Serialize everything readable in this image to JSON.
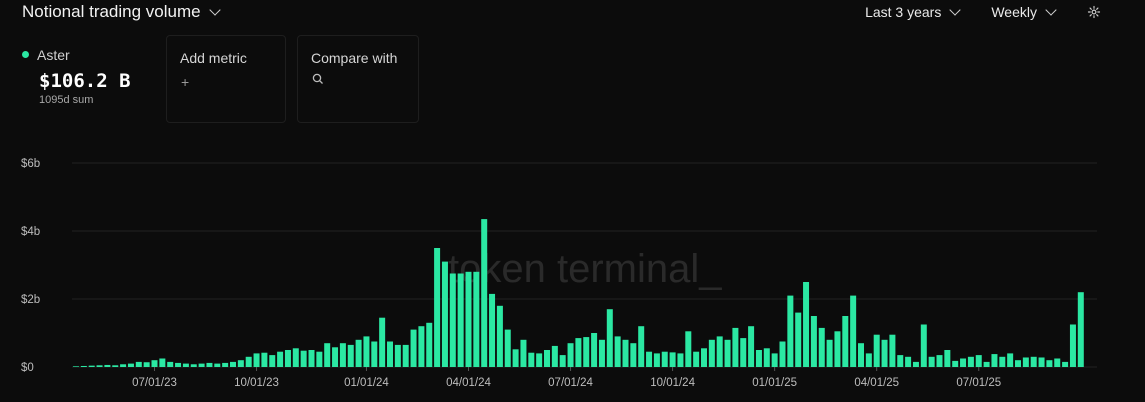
{
  "header": {
    "title": "Notional trading volume"
  },
  "controls": {
    "range": "Last 3 years",
    "interval": "Weekly"
  },
  "metric": {
    "name": "Aster",
    "value": "$106.2 B",
    "sub": "1095d sum",
    "color": "#2be8a3"
  },
  "cards": {
    "add_metric": "Add metric",
    "add_symbol": "+",
    "compare": "Compare with"
  },
  "watermark": "token terminal_",
  "chart_data": {
    "type": "bar",
    "color": "#2be8a3",
    "ylabel": "",
    "xlabel": "",
    "ylim": [
      0,
      6
    ],
    "y_ticks": [
      "$0",
      "$2b",
      "$4b",
      "$6b"
    ],
    "y_tick_values": [
      0,
      2,
      4,
      6
    ],
    "x_ticks": [
      "07/01/23",
      "10/01/23",
      "01/01/24",
      "04/01/24",
      "07/01/24",
      "10/01/24",
      "01/01/25",
      "04/01/25",
      "07/01/25"
    ],
    "x_tick_bar_index": [
      10,
      23,
      37,
      50,
      63,
      76,
      89,
      102,
      115
    ],
    "grid": true,
    "values": [
      0.02,
      0.03,
      0.04,
      0.05,
      0.06,
      0.05,
      0.08,
      0.1,
      0.15,
      0.14,
      0.2,
      0.25,
      0.15,
      0.12,
      0.1,
      0.08,
      0.1,
      0.12,
      0.1,
      0.12,
      0.15,
      0.2,
      0.3,
      0.4,
      0.42,
      0.35,
      0.45,
      0.5,
      0.55,
      0.48,
      0.5,
      0.45,
      0.7,
      0.58,
      0.7,
      0.65,
      0.8,
      0.9,
      0.75,
      1.45,
      0.75,
      0.65,
      0.65,
      1.1,
      1.2,
      1.3,
      3.5,
      3.1,
      2.75,
      2.75,
      2.8,
      2.8,
      4.35,
      2.15,
      1.8,
      1.1,
      0.52,
      0.8,
      0.42,
      0.4,
      0.5,
      0.62,
      0.35,
      0.7,
      0.85,
      0.88,
      1.0,
      0.8,
      1.7,
      0.9,
      0.8,
      0.7,
      1.2,
      0.45,
      0.4,
      0.45,
      0.43,
      0.4,
      1.05,
      0.45,
      0.55,
      0.8,
      0.9,
      0.8,
      1.15,
      0.85,
      1.2,
      0.5,
      0.55,
      0.4,
      0.75,
      2.1,
      1.6,
      2.5,
      1.5,
      1.15,
      0.8,
      1.05,
      1.5,
      2.1,
      0.7,
      0.4,
      0.95,
      0.8,
      0.95,
      0.35,
      0.3,
      0.15,
      1.25,
      0.3,
      0.35,
      0.5,
      0.18,
      0.25,
      0.3,
      0.35,
      0.15,
      0.38,
      0.3,
      0.4,
      0.2,
      0.28,
      0.3,
      0.28,
      0.2,
      0.25,
      0.15,
      1.25,
      2.2
    ]
  }
}
